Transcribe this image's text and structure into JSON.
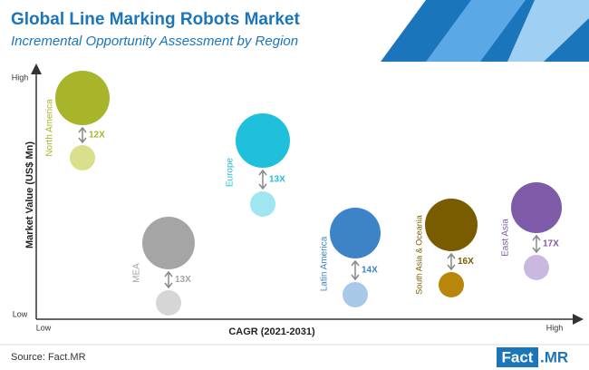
{
  "chart_data": {
    "type": "bubble",
    "title": "Global Line Marking Robots Market",
    "subtitle": "Incremental Opportunity Assessment by Region",
    "x_label": "CAGR (2021-2031)",
    "y_label": "Market Value (US$ Mn)",
    "x_low": "Low",
    "x_high": "High",
    "y_low": "Low",
    "y_high": "High",
    "categories": [
      "North America",
      "Europe",
      "MEA",
      "Latin America",
      "South Asia & Oceania",
      "East Asia"
    ],
    "values": [
      12,
      13,
      13,
      14,
      16,
      17
    ],
    "value_labels": [
      "12X",
      "13X",
      "13X",
      "14X",
      "16X",
      "17X"
    ],
    "colors": [
      "#a8b52a",
      "#1ec0dc",
      "#a5a5a5",
      "#3c83c8",
      "#7a5c00",
      "#7e5aa8"
    ],
    "light_colors": [
      "#d9df8b",
      "#9fe6f1",
      "#d6d6d6",
      "#a8c8e8",
      "#b8860b",
      "#c9b8e0"
    ],
    "source": "Source: Fact.MR",
    "brand": "Fact",
    "brand_suffix": ".MR"
  }
}
